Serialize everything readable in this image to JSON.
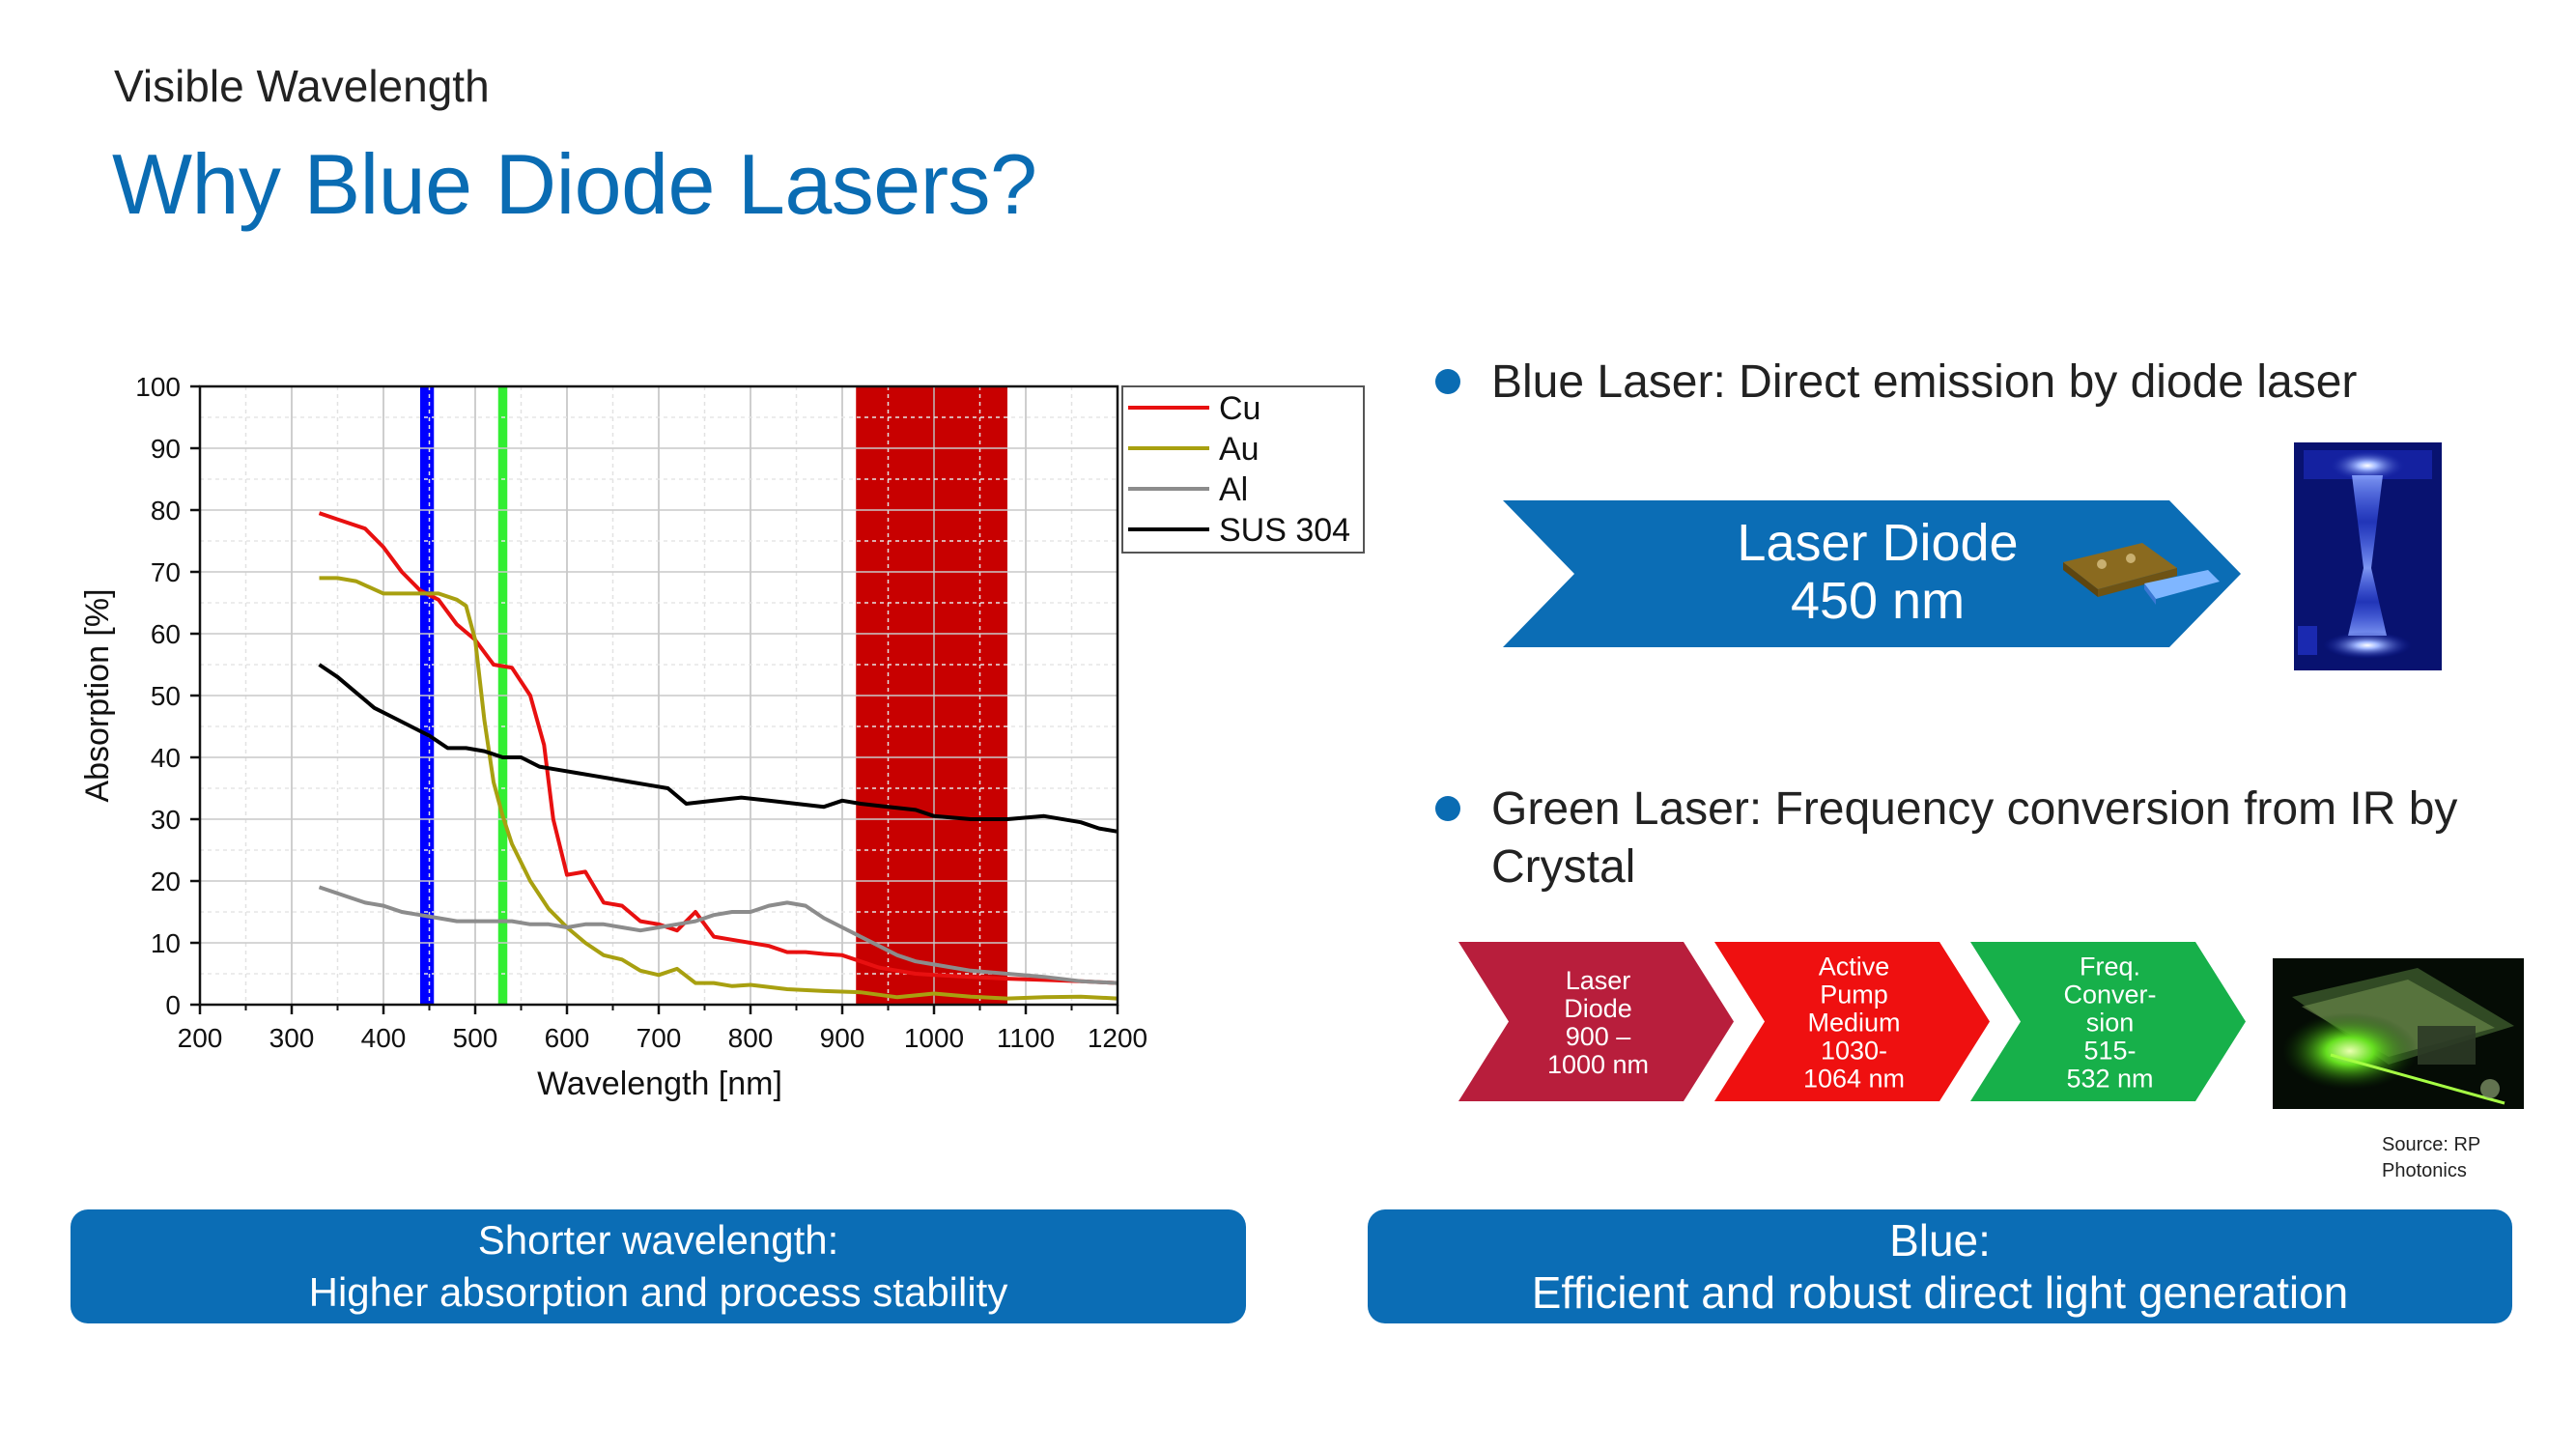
{
  "header": {
    "subtitle": "Visible Wavelength",
    "title": "Why Blue Diode Lasers?"
  },
  "chart_data": {
    "type": "line",
    "xlabel": "Wavelength [nm]",
    "ylabel": "Absorption [%]",
    "xlim": [
      200,
      1200
    ],
    "ylim": [
      0,
      100
    ],
    "xticks": [
      200,
      300,
      400,
      500,
      600,
      700,
      800,
      900,
      1000,
      1100,
      1200
    ],
    "yticks": [
      0,
      10,
      20,
      30,
      40,
      50,
      60,
      70,
      80,
      90,
      100
    ],
    "grid": true,
    "legend_position": "top-right",
    "highlight_bands": [
      {
        "from": 440,
        "to": 455,
        "color": "#0000ff"
      },
      {
        "from": 525,
        "to": 535,
        "color": "#33ee33"
      },
      {
        "from": 915,
        "to": 1080,
        "color": "#c80000"
      }
    ],
    "series": [
      {
        "name": "Cu",
        "color": "#e81010",
        "x": [
          330,
          350,
          380,
          400,
          420,
          440,
          460,
          480,
          500,
          520,
          540,
          560,
          575,
          585,
          600,
          620,
          640,
          660,
          680,
          700,
          720,
          740,
          760,
          780,
          800,
          820,
          840,
          860,
          880,
          900,
          920,
          940,
          960,
          980,
          1000,
          1040,
          1080,
          1120,
          1160,
          1200
        ],
        "y": [
          79.5,
          78.5,
          77,
          74,
          70,
          67,
          65.5,
          61.5,
          59,
          55,
          54.5,
          50,
          42,
          30,
          21,
          21.5,
          16.5,
          16,
          13.5,
          13,
          12,
          15,
          11,
          10.5,
          10,
          9.5,
          8.5,
          8.5,
          8.2,
          8,
          7,
          6,
          5.5,
          5,
          4.8,
          4.5,
          4.2,
          4,
          3.8,
          3.5
        ]
      },
      {
        "name": "Au",
        "color": "#a8a010",
        "x": [
          330,
          350,
          370,
          400,
          420,
          440,
          460,
          480,
          490,
          500,
          510,
          520,
          530,
          540,
          560,
          580,
          600,
          620,
          640,
          660,
          680,
          700,
          720,
          740,
          760,
          780,
          800,
          840,
          880,
          920,
          960,
          1000,
          1040,
          1080,
          1120,
          1160,
          1200
        ],
        "y": [
          69,
          69,
          68.5,
          66.5,
          66.5,
          66.5,
          66.5,
          65.5,
          64.5,
          59,
          46,
          36,
          30.5,
          26,
          20,
          15.5,
          12.5,
          10,
          8,
          7.3,
          5.5,
          4.8,
          5.8,
          3.5,
          3.5,
          3,
          3.2,
          2.5,
          2.2,
          2,
          1.2,
          1.8,
          1.3,
          1,
          1.2,
          1.3,
          1
        ]
      },
      {
        "name": "Al",
        "color": "#8c8c8c",
        "x": [
          330,
          360,
          380,
          400,
          420,
          440,
          460,
          480,
          500,
          520,
          540,
          560,
          580,
          600,
          620,
          640,
          660,
          680,
          700,
          720,
          740,
          760,
          780,
          800,
          820,
          840,
          860,
          880,
          900,
          920,
          940,
          960,
          980,
          1000,
          1040,
          1080,
          1120,
          1160,
          1200
        ],
        "y": [
          19,
          17.5,
          16.5,
          16,
          15,
          14.5,
          14,
          13.5,
          13.5,
          13.5,
          13.5,
          13,
          13,
          12.5,
          13,
          13,
          12.5,
          12,
          12.5,
          13,
          13.5,
          14.5,
          15,
          15,
          16,
          16.5,
          16,
          14,
          12.5,
          11,
          9.5,
          8,
          7,
          6.5,
          5.5,
          5,
          4.5,
          3.8,
          3.5
        ]
      },
      {
        "name": "SUS 304",
        "color": "#000000",
        "x": [
          330,
          350,
          370,
          390,
          410,
          430,
          450,
          470,
          490,
          510,
          530,
          550,
          570,
          590,
          610,
          630,
          650,
          670,
          690,
          710,
          730,
          760,
          790,
          820,
          850,
          880,
          900,
          920,
          950,
          980,
          1000,
          1040,
          1080,
          1120,
          1160,
          1180,
          1200
        ],
        "y": [
          55,
          53,
          50.5,
          48,
          46.5,
          45,
          43.5,
          41.5,
          41.5,
          41,
          40,
          40,
          38.5,
          38,
          37.5,
          37,
          36.5,
          36,
          35.5,
          35,
          32.5,
          33,
          33.5,
          33,
          32.5,
          32,
          33,
          32.5,
          32,
          31.5,
          30.5,
          30,
          30,
          30.5,
          29.5,
          28.5,
          28
        ]
      }
    ]
  },
  "right": {
    "bullet1": "Blue Laser: Direct emission by diode laser",
    "bullet2": "Green Laser: Frequency conversion from IR by Crystal",
    "diode_arrow_line1": "Laser Diode",
    "diode_arrow_line2": "450 nm",
    "green_chain": [
      {
        "text": "Laser\nDiode\n900 –\n1000 nm",
        "color": "#b81e3c"
      },
      {
        "text": "Active\nPump\nMedium\n1030-\n1064 nm",
        "color": "#ef1010"
      },
      {
        "text": "Freq.\nConver-\nsion\n515-\n532 nm",
        "color": "#17b04a"
      }
    ],
    "source_note": "Source: RP\nPhotonics"
  },
  "banners": {
    "left_line1": "Shorter wavelength:",
    "left_line2": "Higher absorption and process stability",
    "right_line1": "Blue:",
    "right_line2": "Efficient and robust direct light generation"
  },
  "colors": {
    "accent_blue": "#0a6cb3",
    "banner_blue": "#0b6db5",
    "diode_arrow": "#0b6db5"
  }
}
